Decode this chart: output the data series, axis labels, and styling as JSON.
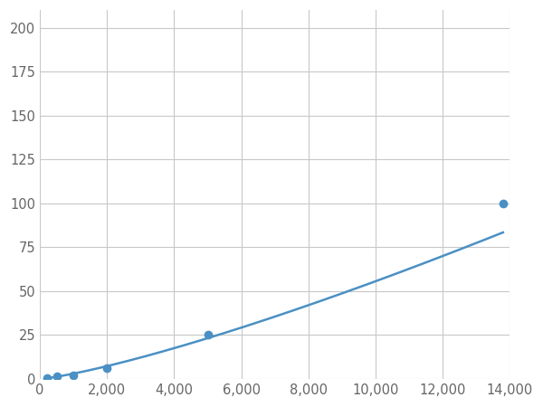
{
  "x_points": [
    200,
    500,
    1000,
    2000,
    5000,
    13800
  ],
  "y_points": [
    0.5,
    1.5,
    2,
    6,
    25,
    100
  ],
  "line_color": "#4a90c4",
  "marker_color": "#4a90c4",
  "marker_size": 7,
  "line_width": 1.8,
  "xlim": [
    0,
    14000
  ],
  "ylim": [
    0,
    210
  ],
  "xticks": [
    0,
    2000,
    4000,
    6000,
    8000,
    10000,
    12000,
    14000
  ],
  "yticks": [
    0,
    25,
    50,
    75,
    100,
    125,
    150,
    175,
    200
  ],
  "grid_color": "#c8c8c8",
  "background_color": "#ffffff",
  "tick_label_fontsize": 10.5,
  "tick_label_color": "#666666"
}
